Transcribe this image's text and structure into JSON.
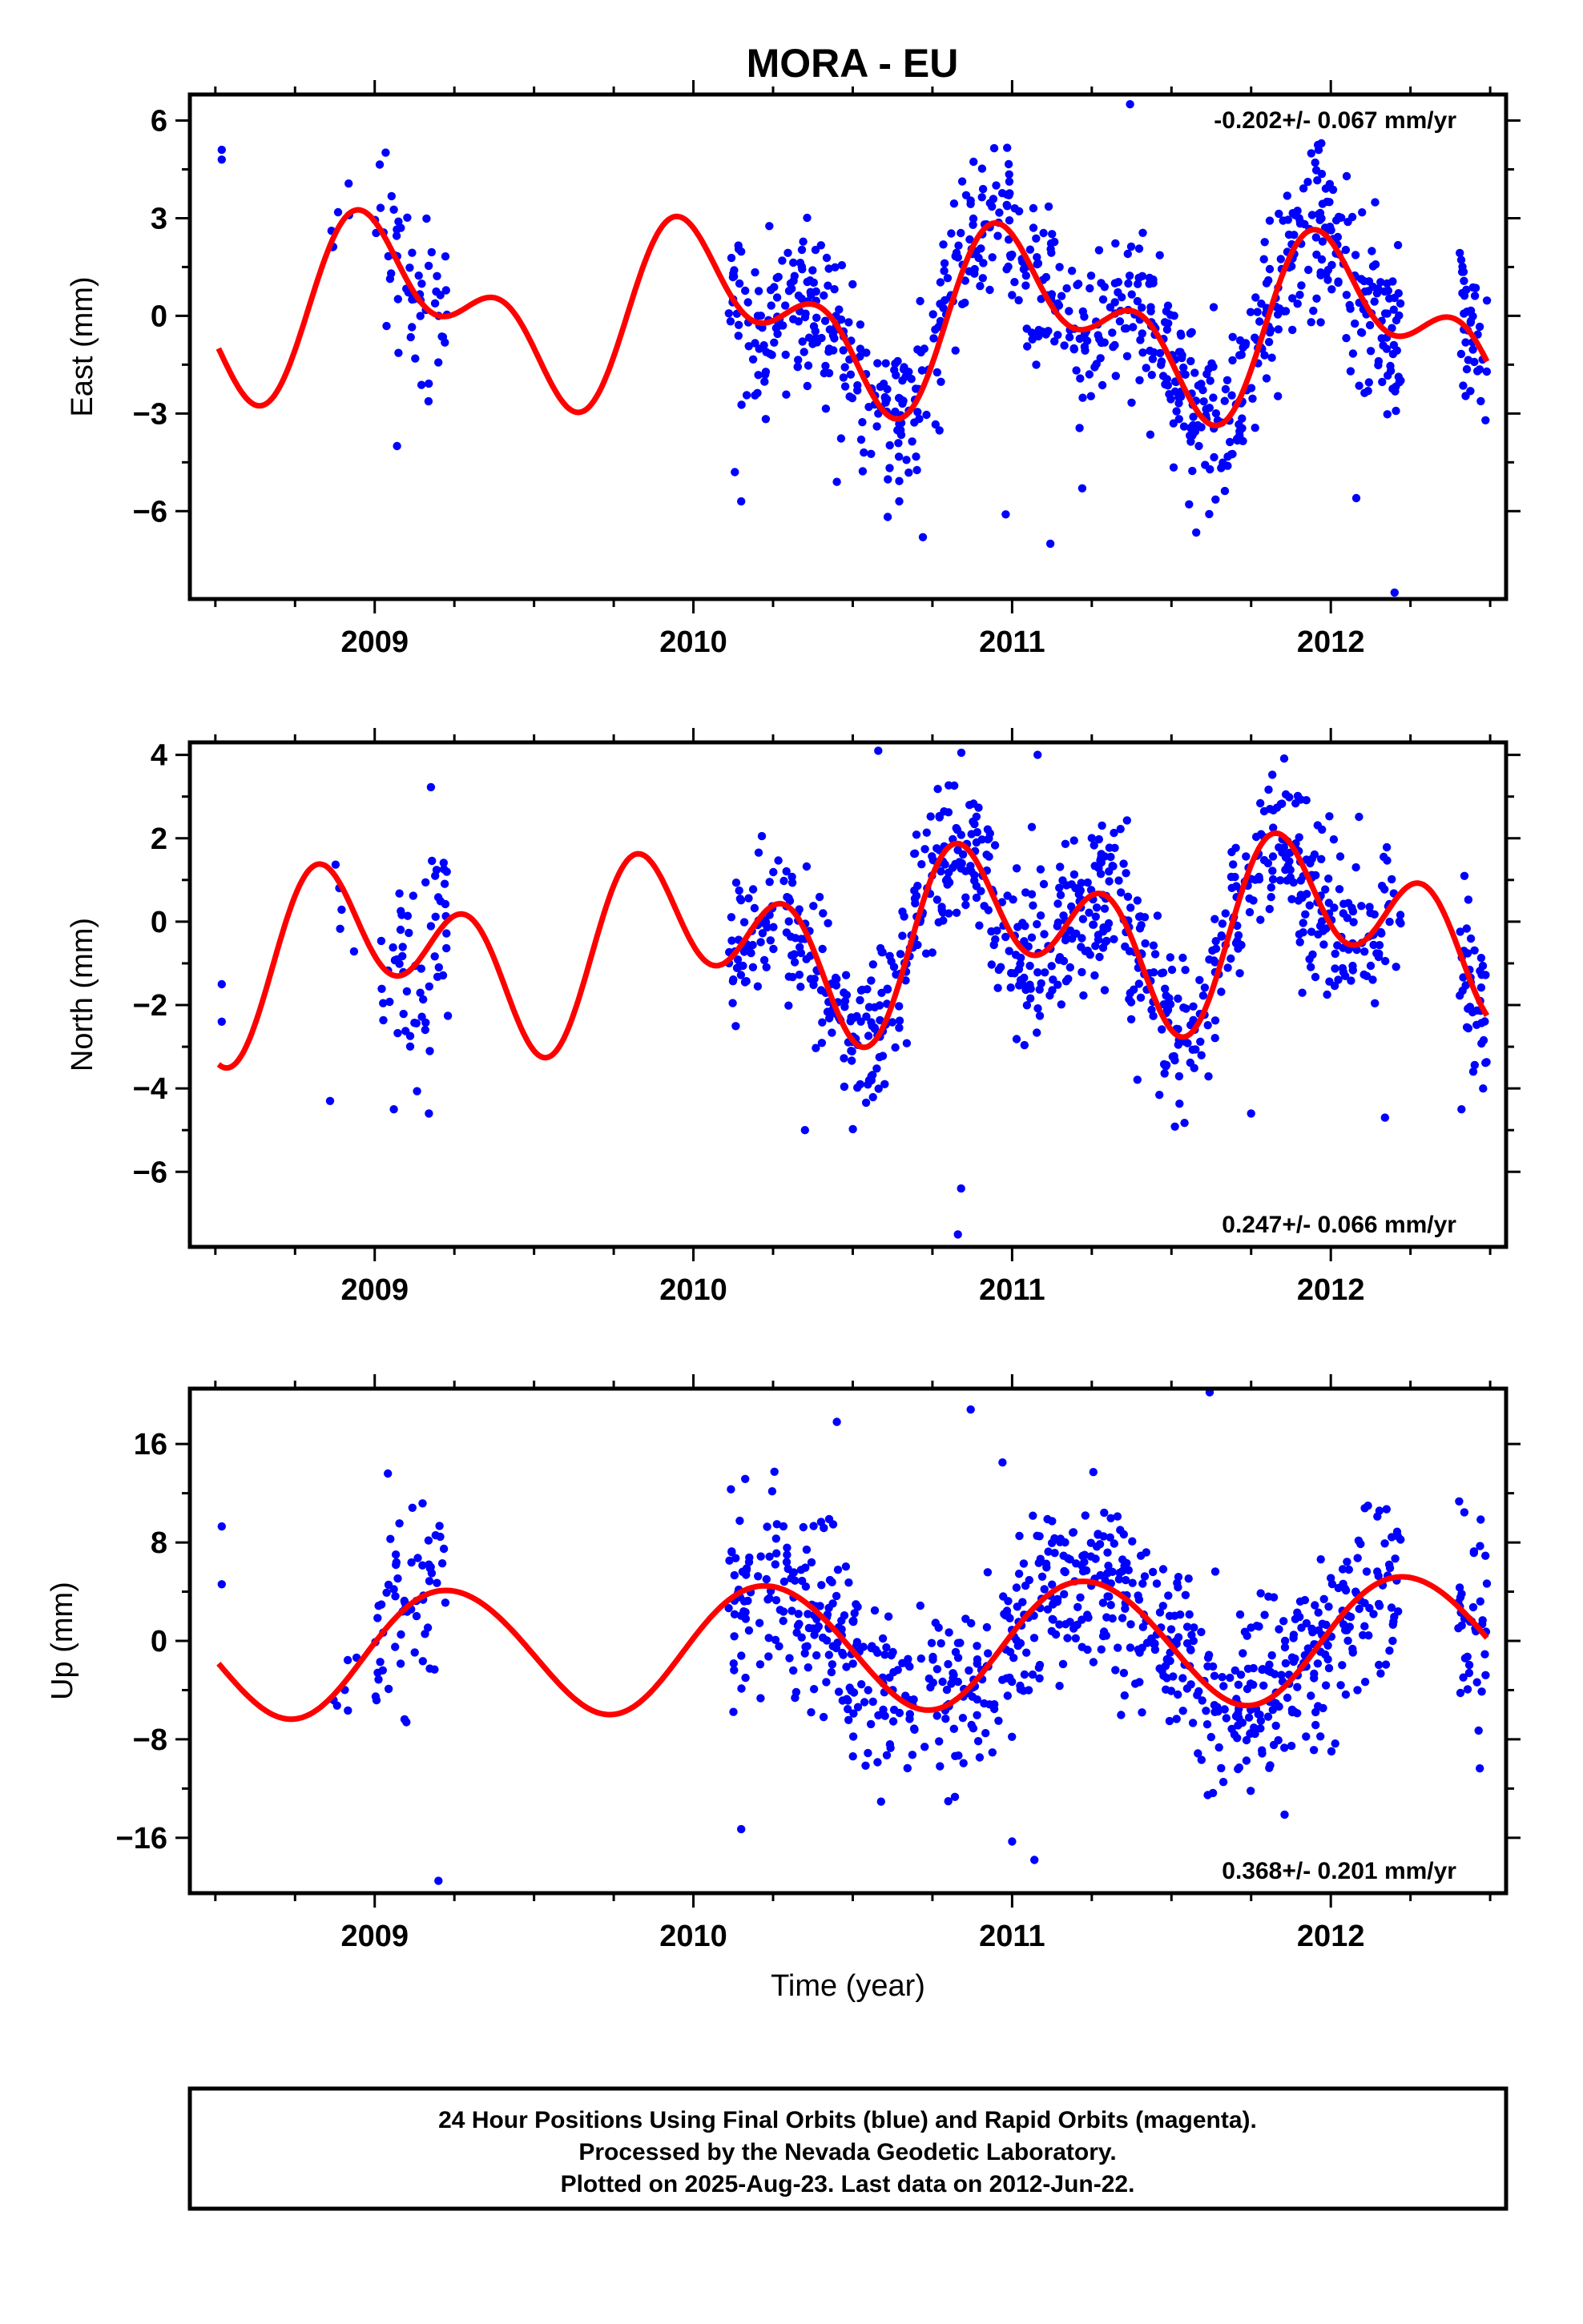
{
  "figure": {
    "title": "MORA - EU",
    "footer": [
      "24 Hour Positions Using Final Orbits (blue) and Rapid Orbits (magenta).",
      "Processed by the Nevada Geodetic Laboratory.",
      "Plotted on 2025-Aug-23. Last data on 2012-Jun-22."
    ]
  },
  "colors": {
    "points": "#0000ff",
    "fit": "#ff0000",
    "frame": "#000000"
  },
  "chart_data": [
    {
      "type": "scatter",
      "ylabel": "East (mm)",
      "xlabel": "",
      "rate": "-0.202+/- 0.067 mm/yr",
      "rate_position": "top-right",
      "xlim": [
        2008.42,
        2012.55
      ],
      "ylim": [
        -8.7,
        6.8
      ],
      "x_ticks": [
        2009,
        2010,
        2011,
        2012
      ],
      "y_ticks": [
        6,
        3,
        0,
        -3,
        -6
      ],
      "y_tick_labels": [
        "6",
        "3",
        "0",
        "−3",
        "−6"
      ],
      "fit": {
        "offset": -0.05,
        "slope": -0.202,
        "t0": 2010.5,
        "annual": [
          0.6,
          1.9
        ],
        "semiannual": [
          -1.3,
          0.75
        ]
      },
      "outliers": [
        [
          2008.52,
          5.1
        ],
        [
          2008.52,
          4.8
        ],
        [
          2009.07,
          -4.0
        ],
        [
          2010.15,
          -5.7
        ],
        [
          2010.45,
          -5.1
        ],
        [
          2010.72,
          -6.8
        ],
        [
          2010.98,
          -6.1
        ],
        [
          2011.12,
          -7.0
        ],
        [
          2011.22,
          -5.3
        ],
        [
          2011.37,
          6.5
        ],
        [
          2012.08,
          -5.6
        ],
        [
          2012.2,
          -8.5
        ],
        [
          2010.13,
          -4.8
        ]
      ],
      "segments": [
        {
          "start": 2008.86,
          "end": 2008.92,
          "n": 6,
          "scatter": 0.5
        },
        {
          "start": 2009.0,
          "end": 2009.23,
          "n": 55,
          "scatter": 1.5
        },
        {
          "start": 2010.11,
          "end": 2012.22,
          "n": 780,
          "scatter": 1.3
        },
        {
          "start": 2012.4,
          "end": 2012.49,
          "n": 40,
          "scatter": 1.3
        }
      ]
    },
    {
      "type": "scatter",
      "ylabel": "North (mm)",
      "xlabel": "",
      "rate": "0.247+/- 0.066 mm/yr",
      "rate_position": "bottom-right",
      "xlim": [
        2008.42,
        2012.55
      ],
      "ylim": [
        -7.8,
        4.3
      ],
      "x_ticks": [
        2009,
        2010,
        2011,
        2012
      ],
      "y_ticks": [
        4,
        2,
        0,
        -2,
        -4,
        -6
      ],
      "y_tick_labels": [
        "4",
        "2",
        "0",
        "−2",
        "−4",
        "−6"
      ],
      "fit": {
        "offset": -0.45,
        "slope": 0.247,
        "t0": 2010.5,
        "annual": [
          -0.3,
          1.2
        ],
        "semiannual": [
          -0.9,
          -1.2
        ]
      },
      "outliers": [
        [
          2008.52,
          -1.5
        ],
        [
          2008.52,
          -2.4
        ],
        [
          2008.86,
          -4.3
        ],
        [
          2009.06,
          -4.5
        ],
        [
          2009.17,
          -4.6
        ],
        [
          2010.35,
          -5.0
        ],
        [
          2010.83,
          -7.5
        ],
        [
          2010.84,
          -6.4
        ],
        [
          2011.08,
          4.0
        ],
        [
          2010.58,
          4.1
        ],
        [
          2012.17,
          -4.7
        ],
        [
          2012.41,
          -4.5
        ],
        [
          2011.75,
          -4.6
        ]
      ],
      "segments": [
        {
          "start": 2008.86,
          "end": 2008.95,
          "n": 5,
          "scatter": 0.5
        },
        {
          "start": 2009.02,
          "end": 2009.23,
          "n": 60,
          "scatter": 1.2
        },
        {
          "start": 2010.11,
          "end": 2012.22,
          "n": 780,
          "scatter": 1.0
        },
        {
          "start": 2012.4,
          "end": 2012.49,
          "n": 40,
          "scatter": 1.0
        }
      ]
    },
    {
      "type": "scatter",
      "ylabel": "Up (mm)",
      "xlabel": "Time (year)",
      "rate": "0.368+/- 0.201 mm/yr",
      "rate_position": "bottom-right",
      "xlim": [
        2008.42,
        2012.55
      ],
      "ylim": [
        -20.5,
        20.5
      ],
      "x_ticks": [
        2009,
        2010,
        2011,
        2012
      ],
      "y_ticks": [
        16,
        8,
        0,
        -8,
        -16
      ],
      "y_tick_labels": [
        "16",
        "8",
        "0",
        "−8",
        "−16"
      ],
      "fit": {
        "offset": -0.4,
        "slope": 0.368,
        "t0": 2010.5,
        "annual": [
          5.1,
          0.6
        ],
        "semiannual": [
          0.1,
          0.2
        ]
      },
      "outliers": [
        [
          2008.52,
          9.3
        ],
        [
          2008.52,
          4.6
        ],
        [
          2009.06,
          4.2
        ],
        [
          2009.17,
          6.2
        ],
        [
          2009.2,
          -19.5
        ],
        [
          2010.15,
          -15.3
        ],
        [
          2010.45,
          17.8
        ],
        [
          2010.87,
          18.8
        ],
        [
          2010.97,
          14.5
        ],
        [
          2011.62,
          20.2
        ],
        [
          2011.07,
          -17.8
        ],
        [
          2011.0,
          -16.3
        ],
        [
          2012.0,
          5.1
        ]
      ],
      "segments": [
        {
          "start": 2008.86,
          "end": 2008.95,
          "n": 6,
          "scatter": 1.5
        },
        {
          "start": 2009.0,
          "end": 2009.23,
          "n": 60,
          "scatter": 4.0
        },
        {
          "start": 2010.11,
          "end": 2012.22,
          "n": 780,
          "scatter": 3.8
        },
        {
          "start": 2012.4,
          "end": 2012.49,
          "n": 40,
          "scatter": 4.5
        }
      ]
    }
  ]
}
